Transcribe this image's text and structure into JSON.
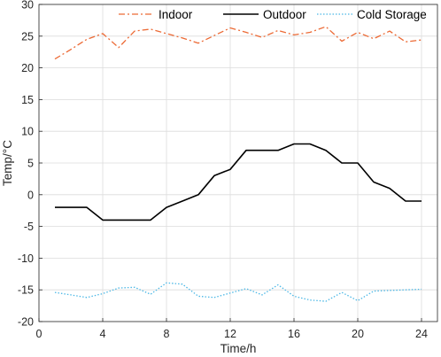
{
  "chart_data": {
    "type": "line",
    "xlabel": "Time/h",
    "ylabel": "Temp/°C",
    "xlim": [
      0,
      25
    ],
    "ylim": [
      -20,
      30
    ],
    "xticks": [
      0,
      4,
      8,
      12,
      16,
      20,
      24
    ],
    "yticks": [
      -20,
      -15,
      -10,
      -5,
      0,
      5,
      10,
      15,
      20,
      25,
      30
    ],
    "grid": true,
    "legend_position": "top-right",
    "x": [
      1,
      2,
      3,
      4,
      5,
      6,
      7,
      8,
      9,
      10,
      11,
      12,
      13,
      14,
      15,
      16,
      17,
      18,
      19,
      20,
      21,
      22,
      23,
      24
    ],
    "series": [
      {
        "name": "Indoor",
        "color": "#ec6a35",
        "dash": "dash-dot",
        "values": [
          21.4,
          22.9,
          24.5,
          25.4,
          23.2,
          25.8,
          26.1,
          25.4,
          24.7,
          23.9,
          25.1,
          26.3,
          25.6,
          24.8,
          25.9,
          25.2,
          25.6,
          26.5,
          24.2,
          25.6,
          24.6,
          25.8,
          24.1,
          24.4
        ]
      },
      {
        "name": "Outdoor",
        "color": "#000000",
        "dash": "solid",
        "values": [
          -2,
          -2,
          -2,
          -4,
          -4,
          -4,
          -4,
          -2,
          -1,
          0,
          3,
          4,
          7,
          7,
          7,
          8,
          8,
          7,
          5,
          5,
          2,
          1,
          -1,
          -1
        ]
      },
      {
        "name": "Cold Storage",
        "color": "#4cb8e6",
        "dash": "dotted",
        "values": [
          -15.4,
          -15.8,
          -16.2,
          -15.6,
          -14.7,
          -14.6,
          -15.7,
          -13.9,
          -14.1,
          -16.0,
          -16.2,
          -15.5,
          -14.8,
          -15.8,
          -14.2,
          -16.0,
          -16.6,
          -16.8,
          -15.4,
          -16.7,
          -15.2,
          -15.1,
          -15.0,
          -14.9
        ]
      }
    ]
  }
}
